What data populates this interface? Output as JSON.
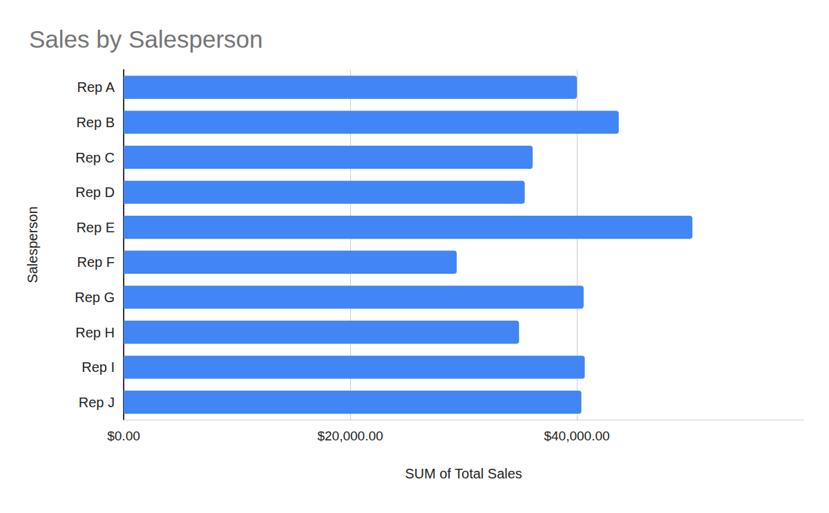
{
  "chart_data": {
    "type": "bar",
    "title": "Sales by Salesperson",
    "orientation": "horizontal",
    "xlabel": "SUM of Total Sales",
    "ylabel": "Salesperson",
    "categories": [
      "Rep A",
      "Rep B",
      "Rep C",
      "Rep D",
      "Rep E",
      "Rep F",
      "Rep G",
      "Rep H",
      "Rep I",
      "Rep J"
    ],
    "values": [
      40000,
      43700,
      36100,
      35400,
      50200,
      29400,
      40600,
      34900,
      40700,
      40400
    ],
    "color": "#4285f4",
    "xlim": [
      0,
      60000
    ],
    "xticks": [
      {
        "value": 0,
        "label": "$0.00"
      },
      {
        "value": 20000,
        "label": "$20,000.00"
      },
      {
        "value": 40000,
        "label": "$40,000.00"
      }
    ],
    "grid": true
  }
}
